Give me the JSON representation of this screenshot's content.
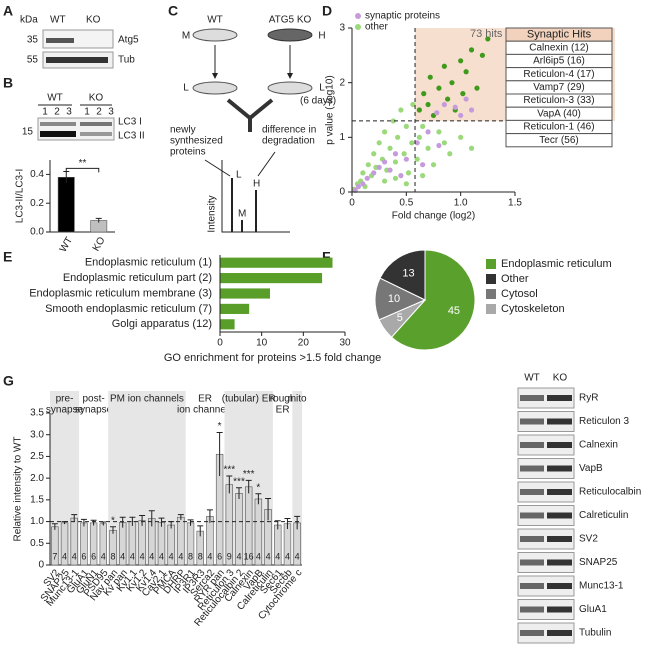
{
  "panel_labels": [
    "A",
    "B",
    "C",
    "D",
    "E",
    "F",
    "G"
  ],
  "panel_a": {
    "unit": "kDa",
    "lanes": [
      "WT",
      "KO"
    ],
    "markers": [
      "35",
      "55"
    ],
    "bands": [
      "Atg5",
      "Tub"
    ]
  },
  "panel_b_blot": {
    "groups": [
      "WT",
      "KO"
    ],
    "lanes": [
      "1",
      "2",
      "3",
      "1",
      "2",
      "3"
    ],
    "marker": "15",
    "bands": [
      "LC3 I",
      "LC3 II"
    ]
  },
  "panel_c": {
    "conditions": [
      "WT",
      "ATG5 KO"
    ],
    "heavy": [
      "M",
      "H"
    ],
    "light": [
      "L",
      "L"
    ],
    "time": "(6 days)",
    "new_label": [
      "newly",
      "synthesized",
      "proteins"
    ],
    "degradation_label": [
      "difference in",
      "degradation"
    ],
    "y_label": "Intensity",
    "peaks": [
      "L",
      "M",
      "H"
    ]
  },
  "blot_g": {
    "lanes": [
      "WT",
      "KO"
    ],
    "proteins": [
      "RyR",
      "Reticulon 3",
      "Calnexin",
      "VapB",
      "Reticulocalbin",
      "Calreticulin",
      "SV2",
      "SNAP25",
      "Munc13-1",
      "GluA1",
      "Tubulin"
    ]
  },
  "chart_data": [
    {
      "type": "bar",
      "ylabel": "LC3-II/LC3-I",
      "categories": [
        "WT",
        "KO"
      ],
      "values": [
        0.38,
        0.08
      ],
      "errors": [
        0.04,
        0.015
      ],
      "colors": [
        "#000000",
        "#bfbfbf"
      ],
      "ylim": [
        0,
        0.5
      ],
      "yticks": [
        {
          "value": 0,
          "label": "0.0"
        },
        {
          "value": 0.2,
          "label": "0.2"
        },
        {
          "value": 0.4,
          "label": "0.4"
        }
      ],
      "annotation": "**"
    },
    {
      "type": "scatter",
      "xlabel": "Fold change (log2)",
      "ylabel": "p value (-log10)",
      "xlim": [
        0,
        1.5
      ],
      "ylim": [
        0,
        3
      ],
      "xticks": [
        0,
        0.5,
        {
          "value": 1,
          "label": "1.0"
        },
        1.5
      ],
      "yticks": [
        0,
        1,
        2,
        3
      ],
      "x_threshold": 0.58,
      "y_threshold": 1.3,
      "hit_region_color": "#f6dfcf",
      "hit_color": "#3f9a1c",
      "annotation": "73 hits",
      "table": {
        "title": "Synaptic Hits",
        "rows": [
          "Calnexin (12)",
          "Arl6ip5 (16)",
          "Reticulon-4 (17)",
          "Vamp7 (29)",
          "Reticulon-3 (33)",
          "VapA (40)",
          "Reticulon-1 (46)",
          "Tecr (56)"
        ]
      },
      "series": [
        {
          "name": "synaptic proteins",
          "color": "#c59bdb",
          "x": [
            0.03,
            0.06,
            0.1,
            0.14,
            0.2,
            0.25,
            0.3,
            0.35,
            0.4,
            0.5,
            0.6,
            0.7,
            0.8,
            0.78,
            0.85,
            0.95,
            1.0,
            1.05,
            1.1,
            1.48,
            0.45,
            0.65
          ],
          "y": [
            0.03,
            0.1,
            0.15,
            0.25,
            0.35,
            0.45,
            0.55,
            0.4,
            0.7,
            0.6,
            0.9,
            1.1,
            0.85,
            1.45,
            1.6,
            1.55,
            1.4,
            1.7,
            1.5,
            2.95,
            0.3,
            0.5
          ]
        },
        {
          "name": "other",
          "color": "#9bd97a",
          "x": [
            0.02,
            0.05,
            0.08,
            0.1,
            0.12,
            0.15,
            0.18,
            0.2,
            0.22,
            0.25,
            0.28,
            0.3,
            0.32,
            0.35,
            0.38,
            0.4,
            0.42,
            0.45,
            0.48,
            0.5,
            0.52,
            0.55,
            0.56,
            0.6,
            0.62,
            0.65,
            0.7,
            0.75,
            0.8,
            0.85,
            0.9,
            1.0,
            1.1,
            0.62,
            0.66,
            0.7,
            0.72,
            0.75,
            0.8,
            0.85,
            0.88,
            0.92,
            0.95,
            1.0,
            1.02,
            1.05,
            1.1,
            1.15,
            1.2,
            1.25,
            0.5,
            0.3,
            0.65,
            0.4
          ],
          "y": [
            0.05,
            0.15,
            0.2,
            0.35,
            0.1,
            0.5,
            0.3,
            0.7,
            0.45,
            0.9,
            0.6,
            1.1,
            0.4,
            0.8,
            1.3,
            0.55,
            1.0,
            1.5,
            0.7,
            1.2,
            0.35,
            0.9,
            1.6,
            0.6,
            1.0,
            1.2,
            0.8,
            0.5,
            1.1,
            0.9,
            0.7,
            1.0,
            0.8,
            1.5,
            1.8,
            1.6,
            2.1,
            1.4,
            1.9,
            2.3,
            1.7,
            2.0,
            1.5,
            2.4,
            1.8,
            2.2,
            2.6,
            1.9,
            2.5,
            2.8,
            0.15,
            0.2,
            0.3,
            0.25
          ]
        }
      ]
    },
    {
      "type": "barh",
      "xlabel": "GO enrichment for proteins >1.5 fold change",
      "color": "#5a9e2a",
      "categories": [
        "Endoplasmic reticulum (1)",
        "Endoplasmic reticulum part (2)",
        "Endoplasmic reticulum membrane (3)",
        "Smooth endoplasmic reticulum (7)",
        "Golgi apparatus (12)"
      ],
      "values": [
        27,
        24.5,
        12,
        7,
        3.5
      ],
      "xlim": [
        0,
        30
      ],
      "xticks": [
        0,
        10,
        20,
        30
      ]
    },
    {
      "type": "pie",
      "categories": [
        "Endoplasmic reticulum",
        "Other",
        "Cytosol",
        "Cytoskeleton"
      ],
      "values": [
        45,
        13,
        10,
        5
      ],
      "colors": [
        "#5aa02c",
        "#333333",
        "#777777",
        "#a9a9a9"
      ]
    },
    {
      "type": "bar",
      "ylabel": "Relative intensity to WT",
      "color": "#d6d6d6",
      "ylim": [
        0,
        3.5
      ],
      "yticks": [
        0,
        {
          "value": 0.5,
          "label": "0.5"
        },
        {
          "value": 1,
          "label": "1.0"
        },
        {
          "value": 1.5,
          "label": "1.5"
        },
        {
          "value": 2,
          "label": "2.0"
        },
        {
          "value": 2.5,
          "label": "2.5"
        },
        {
          "value": 3,
          "label": "3.0"
        },
        {
          "value": 3.5,
          "label": "3.5"
        }
      ],
      "reference_line": 1,
      "categories": [
        "SV2",
        "SNAP25",
        "Munc13-1",
        "GluA1",
        "GluN1",
        "PSD95",
        "Nav pan",
        "Kv pan",
        "Kv1.1",
        "Kv1.2",
        "Kv1.4",
        "Cav2.1",
        "PMCA",
        "DHRP",
        "IP3R1",
        "IP3R3",
        "Serca2",
        "RYR pan",
        "Reticulon 3",
        "Reticulocalbin 2",
        "Calnexin",
        "VapB",
        "Calreticulin",
        "Sec61",
        "Sec6b",
        "Cytochrome c"
      ],
      "values": [
        0.88,
        0.97,
        1.08,
        0.97,
        0.97,
        0.95,
        0.8,
        0.98,
        1.0,
        1.02,
        1.07,
        0.98,
        0.92,
        1.1,
        0.97,
        0.78,
        1.12,
        2.55,
        1.85,
        1.65,
        1.8,
        1.52,
        1.28,
        0.92,
        0.95,
        0.97
      ],
      "errors": [
        0.07,
        0.03,
        0.08,
        0.08,
        0.06,
        0.04,
        0.08,
        0.12,
        0.1,
        0.12,
        0.18,
        0.1,
        0.08,
        0.06,
        0.07,
        0.12,
        0.15,
        0.5,
        0.2,
        0.13,
        0.15,
        0.12,
        0.25,
        0.1,
        0.12,
        0.15
      ],
      "n": [
        "7",
        "4",
        "4",
        "6",
        "6",
        "4",
        "8",
        "4",
        "4",
        "4",
        "4",
        "4",
        "4",
        "4",
        "8",
        "8",
        "4",
        "6",
        "9",
        "4",
        "16",
        "4",
        "4",
        "4",
        "4",
        "4"
      ],
      "significance": [
        null,
        null,
        null,
        null,
        null,
        null,
        "*",
        null,
        null,
        null,
        null,
        null,
        null,
        null,
        null,
        null,
        null,
        "*",
        "***",
        "***",
        "***",
        "*",
        null,
        null,
        null,
        null
      ],
      "groups": [
        {
          "lines": [
            "pre-",
            "synapse"
          ],
          "start": 0,
          "end": 2,
          "shaded": true
        },
        {
          "lines": [
            "post-",
            "synapse"
          ],
          "start": 3,
          "end": 5,
          "shaded": false
        },
        {
          "lines": [
            "PM ion channels"
          ],
          "start": 6,
          "end": 13,
          "shaded": true
        },
        {
          "lines": [
            "ER",
            "ion channels"
          ],
          "start": 14,
          "end": 17,
          "shaded": false
        },
        {
          "lines": [
            "(tubular) ER"
          ],
          "start": 18,
          "end": 22,
          "shaded": true
        },
        {
          "lines": [
            "rough",
            "ER"
          ],
          "start": 23,
          "end": 24,
          "shaded": false
        },
        {
          "lines": [
            "mito"
          ],
          "start": 25,
          "end": 25,
          "shaded": true
        }
      ]
    }
  ]
}
